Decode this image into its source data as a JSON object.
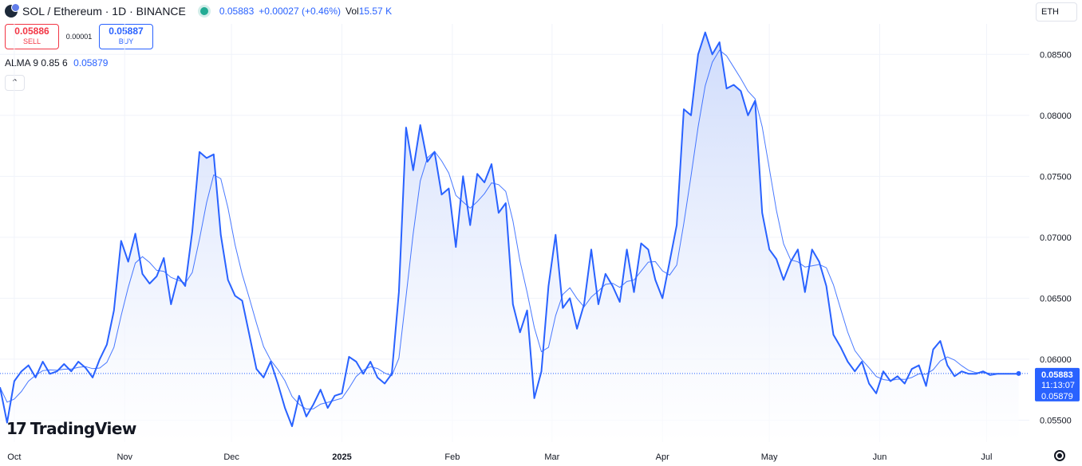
{
  "header": {
    "title": "SOL / Ethereum · 1D · BINANCE",
    "close": "0.05883",
    "change": "+0.00027 (+0.46%)",
    "vol_label": "Vol",
    "vol_value": "15.57 K"
  },
  "trade": {
    "sell_price": "0.05886",
    "sell_label": "SELL",
    "spread": "0.00001",
    "buy_price": "0.05887",
    "buy_label": "BUY"
  },
  "indicator": {
    "name": "ALMA 9 0.85 6",
    "value": "0.05879"
  },
  "currency": "ETH",
  "brand": "TradingView",
  "price_tag": {
    "price": "0.05883",
    "countdown": "11:13:07",
    "alma": "0.05879"
  },
  "colors": {
    "line": "#2962ff",
    "area_top": "#c9d7fb",
    "area_bottom": "#ffffff",
    "grid": "#f0f3fa",
    "tag": "#2962ff"
  },
  "icons": {
    "live": "live-dot-icon",
    "collapse": "chevron-up-icon",
    "settings": "gear-icon"
  },
  "chart_data": {
    "type": "area",
    "y_ticks": [
      "0.08500",
      "0.08000",
      "0.07500",
      "0.07000",
      "0.06500",
      "0.06000",
      "0.05500"
    ],
    "x_ticks": [
      "Oct",
      "Nov",
      "Dec",
      "2025",
      "Feb",
      "Mar",
      "Apr",
      "May",
      "Jun",
      "Jul"
    ],
    "ylim": [
      0.0532,
      0.0875
    ],
    "x_range": [
      "2024-09-27",
      "2025-07-13"
    ],
    "x_tick_dates": [
      "2024-10-01",
      "2024-11-01",
      "2024-12-01",
      "2025-01-01",
      "2025-02-01",
      "2025-03-01",
      "2025-04-01",
      "2025-05-01",
      "2025-06-01",
      "2025-07-01"
    ],
    "grid": true,
    "current_price": 0.05883,
    "series": [
      {
        "name": "SOL / Ethereum",
        "x": [
          "2024-09-27",
          "2024-09-29",
          "2024-10-01",
          "2024-10-03",
          "2024-10-05",
          "2024-10-07",
          "2024-10-09",
          "2024-10-11",
          "2024-10-13",
          "2024-10-15",
          "2024-10-17",
          "2024-10-19",
          "2024-10-21",
          "2024-10-23",
          "2024-10-25",
          "2024-10-27",
          "2024-10-29",
          "2024-10-31",
          "2024-11-02",
          "2024-11-04",
          "2024-11-06",
          "2024-11-08",
          "2024-11-10",
          "2024-11-12",
          "2024-11-14",
          "2024-11-16",
          "2024-11-18",
          "2024-11-20",
          "2024-11-22",
          "2024-11-24",
          "2024-11-26",
          "2024-11-28",
          "2024-11-30",
          "2024-12-02",
          "2024-12-04",
          "2024-12-06",
          "2024-12-08",
          "2024-12-10",
          "2024-12-12",
          "2024-12-14",
          "2024-12-16",
          "2024-12-18",
          "2024-12-20",
          "2024-12-22",
          "2024-12-24",
          "2024-12-26",
          "2024-12-28",
          "2024-12-30",
          "2025-01-01",
          "2025-01-03",
          "2025-01-05",
          "2025-01-07",
          "2025-01-09",
          "2025-01-11",
          "2025-01-13",
          "2025-01-15",
          "2025-01-17",
          "2025-01-19",
          "2025-01-21",
          "2025-01-23",
          "2025-01-25",
          "2025-01-27",
          "2025-01-29",
          "2025-01-31",
          "2025-02-02",
          "2025-02-04",
          "2025-02-06",
          "2025-02-08",
          "2025-02-10",
          "2025-02-12",
          "2025-02-14",
          "2025-02-16",
          "2025-02-18",
          "2025-02-20",
          "2025-02-22",
          "2025-02-24",
          "2025-02-26",
          "2025-02-28",
          "2025-03-02",
          "2025-03-04",
          "2025-03-06",
          "2025-03-08",
          "2025-03-10",
          "2025-03-12",
          "2025-03-14",
          "2025-03-16",
          "2025-03-18",
          "2025-03-20",
          "2025-03-22",
          "2025-03-24",
          "2025-03-26",
          "2025-03-28",
          "2025-03-30",
          "2025-04-01",
          "2025-04-03",
          "2025-04-05",
          "2025-04-07",
          "2025-04-09",
          "2025-04-11",
          "2025-04-13",
          "2025-04-15",
          "2025-04-17",
          "2025-04-19",
          "2025-04-21",
          "2025-04-23",
          "2025-04-25",
          "2025-04-27",
          "2025-04-29",
          "2025-05-01",
          "2025-05-03",
          "2025-05-05",
          "2025-05-07",
          "2025-05-09",
          "2025-05-11",
          "2025-05-13",
          "2025-05-15",
          "2025-05-17",
          "2025-05-19",
          "2025-05-21",
          "2025-05-23",
          "2025-05-25",
          "2025-05-27",
          "2025-05-29",
          "2025-05-31",
          "2025-06-02",
          "2025-06-04",
          "2025-06-06",
          "2025-06-08",
          "2025-06-10",
          "2025-06-12",
          "2025-06-14",
          "2025-06-16",
          "2025-06-18",
          "2025-06-20",
          "2025-06-22",
          "2025-06-24",
          "2025-06-26",
          "2025-06-28",
          "2025-06-30",
          "2025-07-02",
          "2025-07-04",
          "2025-07-06",
          "2025-07-08",
          "2025-07-10"
        ],
        "values": [
          0.0577,
          0.0548,
          0.0582,
          0.059,
          0.0595,
          0.0585,
          0.0598,
          0.0588,
          0.059,
          0.0596,
          0.059,
          0.0598,
          0.0593,
          0.0585,
          0.06,
          0.0612,
          0.064,
          0.0697,
          0.068,
          0.0703,
          0.067,
          0.0662,
          0.0668,
          0.0683,
          0.0645,
          0.0668,
          0.066,
          0.0705,
          0.077,
          0.0765,
          0.0768,
          0.0702,
          0.0665,
          0.0652,
          0.0648,
          0.062,
          0.0592,
          0.0585,
          0.0598,
          0.058,
          0.056,
          0.0545,
          0.057,
          0.0553,
          0.0563,
          0.0575,
          0.056,
          0.057,
          0.0572,
          0.0602,
          0.0598,
          0.0588,
          0.0598,
          0.0585,
          0.058,
          0.0588,
          0.0655,
          0.079,
          0.0755,
          0.0792,
          0.0762,
          0.077,
          0.0735,
          0.074,
          0.0692,
          0.075,
          0.071,
          0.0752,
          0.0745,
          0.076,
          0.072,
          0.0728,
          0.0645,
          0.0622,
          0.064,
          0.0568,
          0.059,
          0.066,
          0.0702,
          0.0642,
          0.065,
          0.0625,
          0.0645,
          0.069,
          0.0645,
          0.067,
          0.066,
          0.0647,
          0.069,
          0.0655,
          0.0695,
          0.069,
          0.0665,
          0.065,
          0.068,
          0.071,
          0.0805,
          0.08,
          0.085,
          0.0868,
          0.085,
          0.086,
          0.0822,
          0.0825,
          0.082,
          0.08,
          0.0812,
          0.072,
          0.069,
          0.0682,
          0.0665,
          0.068,
          0.069,
          0.0655,
          0.069,
          0.068,
          0.066,
          0.062,
          0.061,
          0.0598,
          0.059,
          0.0598,
          0.058,
          0.0572,
          0.059,
          0.0582,
          0.0586,
          0.058,
          0.0592,
          0.0595,
          0.0578,
          0.0608,
          0.0615,
          0.0595,
          0.0586,
          0.059,
          0.0588,
          0.0588,
          0.059,
          0.0587,
          0.0588,
          0.0588,
          0.0588,
          0.0588
        ]
      }
    ]
  }
}
